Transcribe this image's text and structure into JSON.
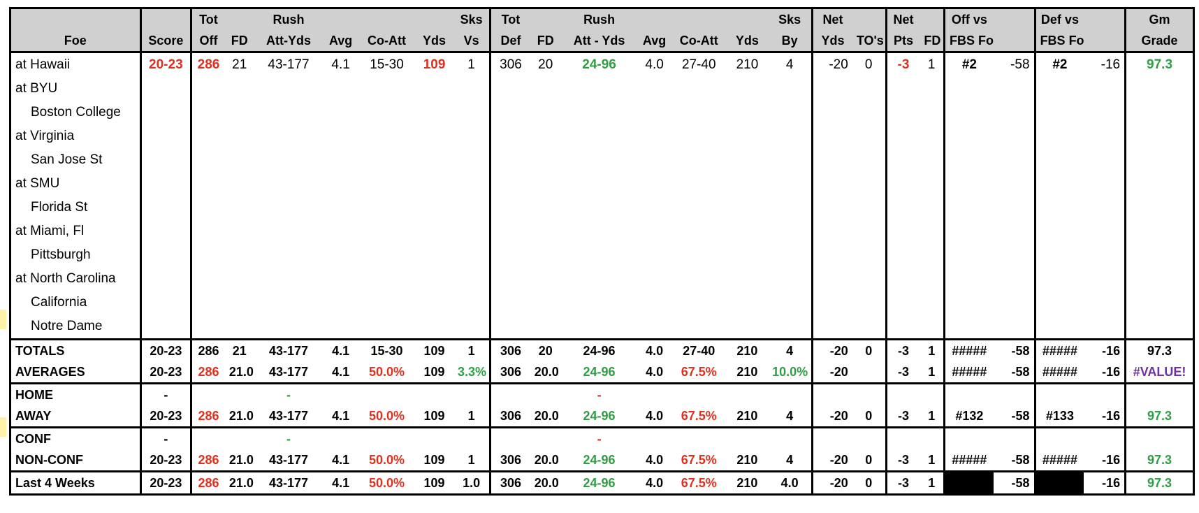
{
  "header": {
    "row1": [
      "",
      "",
      "Tot",
      "",
      "Rush",
      "",
      "",
      "",
      "Sks",
      "Tot",
      "",
      "Rush",
      "",
      "",
      "",
      "Sks",
      "Net",
      "",
      "Net",
      "",
      "Off vs",
      "",
      "Def vs",
      "",
      "Gm"
    ],
    "row2": [
      "Foe",
      "Score",
      "Off",
      "FD",
      "Att-Yds",
      "Avg",
      "Co-Att",
      "Yds",
      "Vs",
      "Def",
      "FD",
      "Att - Yds",
      "Avg",
      "Co-Att",
      "Yds",
      "By",
      "Yds",
      "TO's",
      "Pts",
      "FD",
      "FBS Foe Def",
      "",
      "FBS Foe Off",
      "",
      "Grade"
    ]
  },
  "games": [
    {
      "foe": "at Hawaii",
      "score": "20-23",
      "tot_off": "286",
      "fd": "21",
      "rush": "43-177",
      "avg": "4.1",
      "co_att": "15-30",
      "yds": "109",
      "sks_vs": "1",
      "tot_def": "306",
      "d_fd": "20",
      "d_rush": "24-96",
      "d_avg": "4.0",
      "d_co_att": "27-40",
      "d_yds": "210",
      "sks_by": "4",
      "net_yds": "-20",
      "tos": "0",
      "net_pts": "-3",
      "net_fd": "1",
      "off_rank": "#2",
      "off_val": "-58",
      "def_rank": "#2",
      "def_val": "-16",
      "grade": "97.3"
    },
    {
      "foe": "at BYU"
    },
    {
      "foe": "Boston College"
    },
    {
      "foe": "at Virginia"
    },
    {
      "foe": "San Jose St"
    },
    {
      "foe": "at SMU"
    },
    {
      "foe": "Florida St"
    },
    {
      "foe": "at Miami, Fl"
    },
    {
      "foe": "Pittsburgh"
    },
    {
      "foe": "at North Carolina"
    },
    {
      "foe": "California"
    },
    {
      "foe": "Notre Dame"
    }
  ],
  "totals": {
    "label": "TOTALS",
    "score": "20-23",
    "tot_off": "286",
    "fd": "21",
    "rush": "43-177",
    "avg": "4.1",
    "co_att": "15-30",
    "yds": "109",
    "sks_vs": "1",
    "tot_def": "306",
    "d_fd": "20",
    "d_rush": "24-96",
    "d_avg": "4.0",
    "d_co_att": "27-40",
    "d_yds": "210",
    "sks_by": "4",
    "net_yds": "-20",
    "tos": "0",
    "net_pts": "-3",
    "net_fd": "1",
    "off_rank": "#####",
    "off_val": "-58",
    "def_rank": "#####",
    "def_val": "-16",
    "grade": "97.3"
  },
  "averages": {
    "label": "AVERAGES",
    "score": "20-23",
    "tot_off": "286",
    "fd": "21.0",
    "rush": "43-177",
    "avg": "4.1",
    "co_att": "50.0%",
    "yds": "109",
    "sks_vs": "3.3%",
    "tot_def": "306",
    "d_fd": "20.0",
    "d_rush": "24-96",
    "d_avg": "4.0",
    "d_co_att": "67.5%",
    "d_yds": "210",
    "sks_by": "10.0%",
    "net_yds": "-20",
    "tos": "",
    "net_pts": "-3",
    "net_fd": "1",
    "off_rank": "#####",
    "off_val": "-58",
    "def_rank": "#####",
    "def_val": "-16",
    "grade": "#VALUE!"
  },
  "home": {
    "label": "HOME",
    "score": "-",
    "rush": "-",
    "d_rush": "-"
  },
  "away": {
    "label": "AWAY",
    "score": "20-23",
    "tot_off": "286",
    "fd": "21.0",
    "rush": "43-177",
    "avg": "4.1",
    "co_att": "50.0%",
    "yds": "109",
    "sks_vs": "1",
    "tot_def": "306",
    "d_fd": "20.0",
    "d_rush": "24-96",
    "d_avg": "4.0",
    "d_co_att": "67.5%",
    "d_yds": "210",
    "sks_by": "4",
    "net_yds": "-20",
    "tos": "0",
    "net_pts": "-3",
    "net_fd": "1",
    "off_rank": "#132",
    "off_val": "-58",
    "def_rank": "#133",
    "def_val": "-16",
    "grade": "97.3"
  },
  "conf": {
    "label": "CONF",
    "score": "-",
    "rush": "-",
    "d_rush": "-"
  },
  "nonconf": {
    "label": "NON-CONF",
    "score": "20-23",
    "tot_off": "286",
    "fd": "21.0",
    "rush": "43-177",
    "avg": "4.1",
    "co_att": "50.0%",
    "yds": "109",
    "sks_vs": "1",
    "tot_def": "306",
    "d_fd": "20.0",
    "d_rush": "24-96",
    "d_avg": "4.0",
    "d_co_att": "67.5%",
    "d_yds": "210",
    "sks_by": "4",
    "net_yds": "-20",
    "tos": "0",
    "net_pts": "-3",
    "net_fd": "1",
    "off_rank": "#####",
    "off_val": "-58",
    "def_rank": "#####",
    "def_val": "-16",
    "grade": "97.3"
  },
  "last4": {
    "label": "Last 4 Weeks",
    "score": "20-23",
    "tot_off": "286",
    "fd": "21.0",
    "rush": "43-177",
    "avg": "4.1",
    "co_att": "50.0%",
    "yds": "109",
    "sks_vs": "1.0",
    "tot_def": "306",
    "d_fd": "20.0",
    "d_rush": "24-96",
    "d_avg": "4.0",
    "d_co_att": "67.5%",
    "d_yds": "210",
    "sks_by": "4.0",
    "net_yds": "-20",
    "tos": "0",
    "net_pts": "-3",
    "net_fd": "1",
    "off_val": "-58",
    "def_val": "-16",
    "grade": "97.3"
  },
  "colors": {
    "header_bg": "#d0d0d0",
    "negative": "#e0301e",
    "positive": "#2f9e44",
    "error": "#7030a0",
    "marker": "#fff2a8"
  }
}
